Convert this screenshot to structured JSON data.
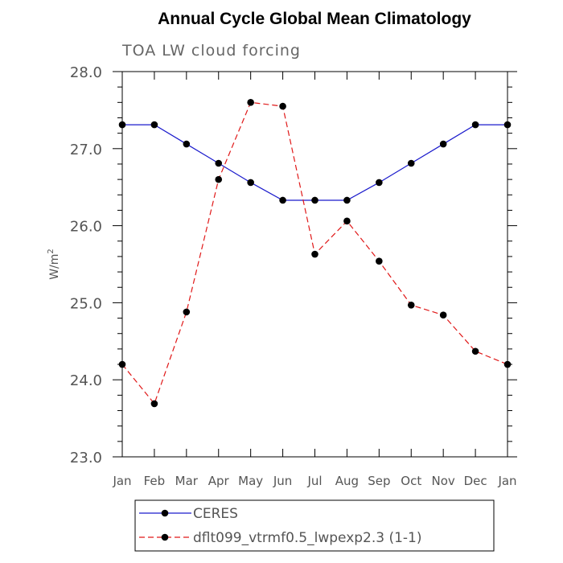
{
  "chart_data": {
    "type": "line",
    "title": "Annual Cycle Global Mean Climatology",
    "subtitle": "TOA LW cloud forcing",
    "ylabel_base": "W/m",
    "ylabel_sup": "2",
    "categories": [
      "Jan",
      "Feb",
      "Mar",
      "Apr",
      "May",
      "Jun",
      "Jul",
      "Aug",
      "Sep",
      "Oct",
      "Nov",
      "Dec",
      "Jan"
    ],
    "ylim": [
      23.0,
      28.0
    ],
    "yticks": [
      "23.0",
      "24.0",
      "25.0",
      "26.0",
      "27.0",
      "28.0"
    ],
    "grid": false,
    "legend_position": "bottom",
    "series": [
      {
        "name": "CERES",
        "color": "#1a1acc",
        "dash": "solid",
        "values": [
          27.31,
          27.31,
          27.06,
          26.81,
          26.56,
          26.33,
          26.33,
          26.33,
          26.56,
          26.81,
          27.06,
          27.31,
          27.31
        ]
      },
      {
        "name": "dflt099_vtrmf0.5_lwpexp2.3 (1-1)",
        "color": "#e01818",
        "dash": "dashed",
        "values": [
          24.2,
          23.69,
          24.88,
          26.6,
          27.6,
          27.55,
          25.63,
          26.06,
          25.54,
          24.97,
          24.84,
          24.37,
          24.2
        ]
      }
    ]
  }
}
